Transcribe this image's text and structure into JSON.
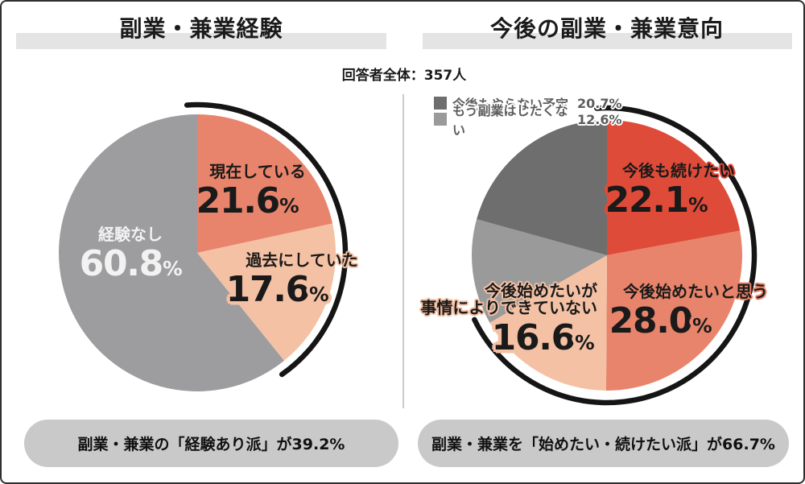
{
  "page": {
    "respondents_label": "回答者全体：357人"
  },
  "left_panel": {
    "title": "副業・兼業経験",
    "caption": "副業・兼業の「経験あり派」が39.2%"
  },
  "right_panel": {
    "title": "今後の副業・兼業意向",
    "caption": "副業・兼業を「始めたい・続けたい派」が66.7%",
    "legend": [
      {
        "label": "今後もやらない予定",
        "value": "20.7%"
      },
      {
        "label": "もう副業はしたくない",
        "value": "12.6%"
      }
    ]
  },
  "chart_data": {
    "type": "pie",
    "respondents": 357,
    "charts": [
      {
        "title": "副業・兼業経験",
        "start_angle": "12-oclock",
        "direction": "clockwise",
        "slices": [
          {
            "label": "現在している",
            "value": 21.6,
            "num": "21.6",
            "unit": "%",
            "color": "#e8846b"
          },
          {
            "label": "過去にしていた",
            "value": 17.6,
            "num": "17.6",
            "unit": "%",
            "color": "#f4c1a4"
          },
          {
            "label": "経験なし",
            "value": 60.8,
            "num": "60.8",
            "unit": "%",
            "color": "#9d9da0"
          }
        ],
        "highlight_arc_pct": [
          0,
          39.2
        ],
        "highlight_arc_color": "#151515",
        "summary": "副業・兼業の「経験あり派」が39.2%"
      },
      {
        "title": "今後の副業・兼業意向",
        "start_angle": "12-oclock",
        "direction": "clockwise",
        "slices": [
          {
            "label": "今後も続けたい",
            "value": 22.1,
            "num": "22.1",
            "unit": "%",
            "color": "#df4b39"
          },
          {
            "label": "今後始めたいと思う",
            "value": 28.0,
            "num": "28.0",
            "unit": "%",
            "color": "#e8846b"
          },
          {
            "label": "今後始めたいが事情によりできていない",
            "label_line1": "今後始めたいが",
            "label_line2": "事情によりできていない",
            "value": 16.6,
            "num": "16.6",
            "unit": "%",
            "color": "#f4c1a4"
          },
          {
            "label": "もう副業はしたくない",
            "value": 12.6,
            "num": "12.6",
            "unit": "%",
            "color": "#9a9a9a"
          },
          {
            "label": "今後もやらない予定",
            "value": 20.7,
            "num": "20.7",
            "unit": "%",
            "color": "#6e6e6e"
          }
        ],
        "highlight_arc_pct": [
          0,
          66.7
        ],
        "highlight_arc_color": "#151515",
        "summary": "副業・兼業を「始めたい・続けたい派」が66.7%"
      }
    ]
  }
}
